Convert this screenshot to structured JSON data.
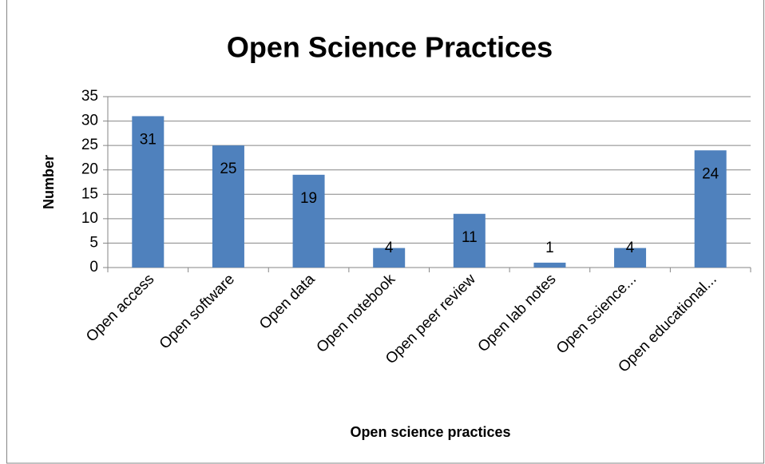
{
  "chart_data": {
    "type": "bar",
    "title": "Open Science Practices",
    "x_label": "Open science practices",
    "y_label": "Number",
    "categories": [
      "Open access",
      "Open software",
      "Open data",
      "Open notebook",
      "Open peer review",
      "Open lab notes",
      "Open science...",
      "Open educational..."
    ],
    "values": [
      31,
      25,
      19,
      4,
      11,
      1,
      4,
      24
    ],
    "color": "#4f81bd",
    "ylim": [
      0,
      35
    ],
    "yticks": [
      0,
      5,
      10,
      15,
      20,
      25,
      30,
      35
    ],
    "grid": true
  }
}
